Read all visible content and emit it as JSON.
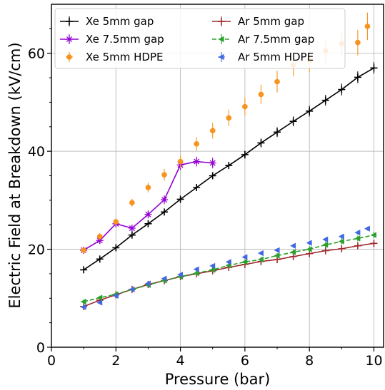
{
  "chart_data": {
    "type": "line",
    "title": "",
    "xlabel": "Pressure (bar)",
    "ylabel": "Electric Field at Breakdown (kV/cm)",
    "xlim": [
      0,
      10.3
    ],
    "ylim": [
      0,
      70
    ],
    "xticks": [
      0,
      2,
      4,
      6,
      8,
      10
    ],
    "yticks": [
      0,
      20,
      40,
      60
    ],
    "grid": true,
    "legend": {
      "placement": "top",
      "columns": 2
    },
    "series": [
      {
        "name": "Xe 5mm gap",
        "color": "#000000",
        "marker": "plus",
        "line": "solid",
        "x": [
          1,
          1.5,
          2,
          2.5,
          3,
          3.5,
          4,
          4.5,
          5,
          5.5,
          6,
          6.5,
          7,
          7.5,
          8,
          8.5,
          9,
          9.5,
          10
        ],
        "y": [
          15.8,
          18.0,
          20.3,
          22.9,
          25.2,
          27.6,
          30.2,
          32.6,
          35.0,
          37.1,
          39.3,
          41.7,
          43.9,
          46.1,
          48.2,
          50.4,
          52.6,
          55.1,
          57.0
        ],
        "yerr": [
          0.5,
          0.5,
          0.5,
          0.5,
          0.5,
          0.5,
          0.6,
          0.6,
          0.7,
          0.7,
          0.8,
          0.9,
          1.0,
          1.0,
          1.1,
          1.1,
          1.2,
          1.2,
          1.2
        ]
      },
      {
        "name": "Xe 7.5mm gap",
        "color": "#9400D3",
        "marker": "star",
        "line": "solid",
        "x": [
          1,
          1.5,
          2,
          2.5,
          3,
          3.5,
          4,
          4.5,
          5
        ],
        "y": [
          19.8,
          21.8,
          25.2,
          24.3,
          27.1,
          30.1,
          37.2,
          37.9,
          37.6
        ],
        "yerr": [
          0.7,
          0.7,
          0.7,
          0.7,
          0.8,
          0.9,
          1.0,
          1.0,
          1.1
        ]
      },
      {
        "name": "Xe 5mm HDPE",
        "color": "#F7931E",
        "marker": "circle",
        "line": "none",
        "x": [
          1,
          1.5,
          2,
          2.5,
          3,
          3.5,
          4,
          4.5,
          5,
          5.5,
          6,
          6.5,
          7,
          7.5,
          8,
          8.5,
          9,
          9.5,
          9.8
        ],
        "y": [
          19.8,
          22.6,
          25.6,
          29.5,
          32.6,
          35.2,
          37.9,
          41.5,
          44.2,
          46.8,
          49.1,
          51.6,
          54.2,
          57.6,
          58.5,
          60.5,
          62.0,
          62.2,
          65.5
        ],
        "yerr": [
          0.6,
          0.7,
          0.7,
          0.8,
          1.0,
          1.2,
          1.3,
          1.4,
          1.6,
          1.7,
          1.8,
          2.0,
          2.2,
          2.3,
          2.4,
          2.4,
          2.5,
          2.6,
          2.8
        ]
      },
      {
        "name": "Ar 5mm gap",
        "color": "#A0282D",
        "marker": "plus",
        "line": "solid",
        "x": [
          1,
          1.5,
          2,
          2.5,
          3,
          3.5,
          4,
          4.5,
          5,
          5.5,
          6,
          6.5,
          7,
          7.5,
          8,
          8.5,
          9,
          9.5,
          10
        ],
        "y": [
          8.3,
          9.6,
          10.7,
          11.8,
          12.8,
          13.6,
          14.4,
          15.0,
          15.6,
          16.3,
          16.9,
          17.5,
          17.9,
          18.5,
          19.1,
          19.7,
          20.1,
          20.7,
          21.2
        ],
        "yerr": [
          0.3,
          0.3,
          0.3,
          0.3,
          0.3,
          0.3,
          0.3,
          0.3,
          0.3,
          0.3,
          0.3,
          0.3,
          0.3,
          0.3,
          0.3,
          0.3,
          0.3,
          0.3,
          0.3
        ]
      },
      {
        "name": "Ar 7.5mm gap",
        "color": "#2CA02C",
        "marker": "triangle-left",
        "line": "dashed",
        "x": [
          1,
          1.5,
          2,
          2.5,
          3,
          3.5,
          4,
          4.5,
          5,
          5.5,
          6,
          6.5,
          7,
          7.5,
          8,
          8.5,
          9,
          9.5,
          10
        ],
        "y": [
          9.3,
          10.1,
          10.8,
          11.8,
          12.7,
          13.6,
          14.4,
          15.1,
          15.8,
          16.7,
          17.4,
          17.9,
          18.7,
          19.4,
          20.0,
          20.9,
          21.6,
          22.2,
          22.9
        ],
        "yerr": [
          0.4,
          0.4,
          0.4,
          0.4,
          0.4,
          0.4,
          0.4,
          0.5,
          0.5,
          0.5,
          0.5,
          0.5,
          0.5,
          0.5,
          0.6,
          0.6,
          0.6,
          0.6,
          0.6
        ]
      },
      {
        "name": "Ar 5mm HDPE",
        "color": "#4169E1",
        "marker": "triangle-left",
        "line": "none",
        "x": [
          1,
          1.5,
          2,
          2.5,
          3,
          3.5,
          4,
          4.5,
          5,
          5.5,
          6,
          6.5,
          7,
          7.5,
          8,
          8.5,
          9,
          9.5,
          9.8
        ],
        "y": [
          8.2,
          9.1,
          10.5,
          11.8,
          13.0,
          14.0,
          14.8,
          15.9,
          16.6,
          17.4,
          18.4,
          19.2,
          19.8,
          20.7,
          21.3,
          22.0,
          22.6,
          23.4,
          24.2
        ],
        "yerr": [
          0.3,
          0.3,
          0.3,
          0.3,
          0.3,
          0.3,
          0.4,
          0.4,
          0.4,
          0.4,
          0.4,
          0.4,
          0.4,
          0.4,
          0.4,
          0.4,
          0.4,
          0.4,
          0.4
        ]
      }
    ]
  }
}
